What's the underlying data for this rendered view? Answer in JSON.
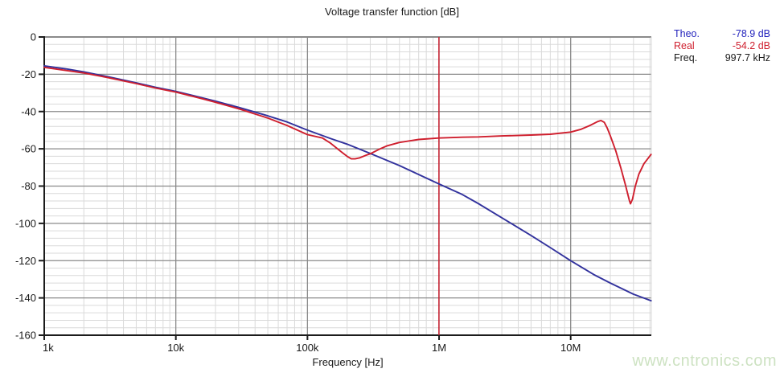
{
  "title": "Voltage transfer function [dB]",
  "watermark": "www.cntronics.com",
  "legend": {
    "rows": [
      {
        "name": "theo",
        "label": "Theo.",
        "value": "-78.9 dB",
        "color": "#2525bd"
      },
      {
        "name": "real",
        "label": "Real",
        "value": "-54.2 dB",
        "color": "#cf1f2e"
      },
      {
        "name": "freq",
        "label": "Freq.",
        "value": "997.7 kHz",
        "color": "#1a1a1a"
      }
    ]
  },
  "chart_data": {
    "type": "line",
    "title": "Voltage transfer function [dB]",
    "xlabel": "Frequency [Hz]",
    "ylabel": "",
    "x_scale": "log",
    "x_range_hz": [
      1000,
      41000000
    ],
    "y_range_db": [
      -160,
      0
    ],
    "y_minor_step_db": 4,
    "grid": {
      "minor_color": "#dadada",
      "major_color": "#8a8a8a",
      "axis_color": "#1c1c1c",
      "background": "#ffffff"
    },
    "y_ticks": [
      {
        "db": 0,
        "label": "0"
      },
      {
        "db": -20,
        "label": "-20"
      },
      {
        "db": -40,
        "label": "-40"
      },
      {
        "db": -60,
        "label": "-60"
      },
      {
        "db": -80,
        "label": "-80"
      },
      {
        "db": -100,
        "label": "-100"
      },
      {
        "db": -120,
        "label": "-120"
      },
      {
        "db": -140,
        "label": "-140"
      },
      {
        "db": -160,
        "label": "-160"
      }
    ],
    "x_ticks": [
      {
        "hz": 1000,
        "label": "1k"
      },
      {
        "hz": 10000,
        "label": "10k"
      },
      {
        "hz": 100000,
        "label": "100k"
      },
      {
        "hz": 1000000,
        "label": "1M"
      },
      {
        "hz": 10000000,
        "label": "10M"
      }
    ],
    "cursor": {
      "hz": 997700,
      "label": "997.7 kHz",
      "color": "#cc2233",
      "theo_db": -78.9,
      "real_db": -54.2
    },
    "series": [
      {
        "name": "Theo.",
        "color": "#32329d",
        "points": [
          [
            1000,
            -15.5
          ],
          [
            1500,
            -17.2
          ],
          [
            2000,
            -18.7
          ],
          [
            3000,
            -21.2
          ],
          [
            5000,
            -24.6
          ],
          [
            7000,
            -27.0
          ],
          [
            10000,
            -29.2
          ],
          [
            15000,
            -32.2
          ],
          [
            20000,
            -34.4
          ],
          [
            30000,
            -37.8
          ],
          [
            50000,
            -42.3
          ],
          [
            70000,
            -45.6
          ],
          [
            100000,
            -50.0
          ],
          [
            150000,
            -54.5
          ],
          [
            200000,
            -57.5
          ],
          [
            300000,
            -62.5
          ],
          [
            500000,
            -69.0
          ],
          [
            700000,
            -73.8
          ],
          [
            1000000,
            -78.9
          ],
          [
            1500000,
            -84.5
          ],
          [
            2000000,
            -89.5
          ],
          [
            3000000,
            -97.0
          ],
          [
            5000000,
            -106.5
          ],
          [
            7000000,
            -113.0
          ],
          [
            10000000,
            -120.0
          ],
          [
            15000000,
            -127.5
          ],
          [
            20000000,
            -132.0
          ],
          [
            30000000,
            -138.0
          ],
          [
            40800000,
            -141.5
          ]
        ]
      },
      {
        "name": "Real",
        "color": "#cf1f2e",
        "points": [
          [
            1000,
            -16.3
          ],
          [
            2000,
            -19.3
          ],
          [
            3000,
            -21.7
          ],
          [
            5000,
            -25.0
          ],
          [
            7000,
            -27.4
          ],
          [
            10000,
            -29.6
          ],
          [
            15000,
            -32.7
          ],
          [
            20000,
            -35.0
          ],
          [
            30000,
            -38.5
          ],
          [
            50000,
            -43.5
          ],
          [
            70000,
            -47.5
          ],
          [
            100000,
            -52.4
          ],
          [
            130000,
            -54.2
          ],
          [
            150000,
            -57.0
          ],
          [
            180000,
            -61.5
          ],
          [
            200000,
            -64.0
          ],
          [
            215000,
            -65.4
          ],
          [
            230000,
            -65.4
          ],
          [
            250000,
            -64.8
          ],
          [
            280000,
            -63.4
          ],
          [
            300000,
            -62.7
          ],
          [
            350000,
            -60.3
          ],
          [
            400000,
            -58.5
          ],
          [
            500000,
            -56.6
          ],
          [
            700000,
            -55.0
          ],
          [
            1000000,
            -54.2
          ],
          [
            1500000,
            -53.8
          ],
          [
            2000000,
            -53.6
          ],
          [
            3000000,
            -53.1
          ],
          [
            5000000,
            -52.6
          ],
          [
            7000000,
            -52.2
          ],
          [
            10000000,
            -51.0
          ],
          [
            12000000,
            -49.5
          ],
          [
            14000000,
            -47.5
          ],
          [
            16000000,
            -45.4
          ],
          [
            17000000,
            -44.8
          ],
          [
            18000000,
            -45.8
          ],
          [
            19000000,
            -49.0
          ],
          [
            20000000,
            -53.0
          ],
          [
            22000000,
            -61.0
          ],
          [
            24000000,
            -70.0
          ],
          [
            26000000,
            -79.0
          ],
          [
            28000000,
            -88.0
          ],
          [
            28500000,
            -89.5
          ],
          [
            29500000,
            -87.0
          ],
          [
            31000000,
            -80.0
          ],
          [
            33000000,
            -73.5
          ],
          [
            36000000,
            -68.0
          ],
          [
            40800000,
            -63.0
          ]
        ]
      }
    ]
  }
}
